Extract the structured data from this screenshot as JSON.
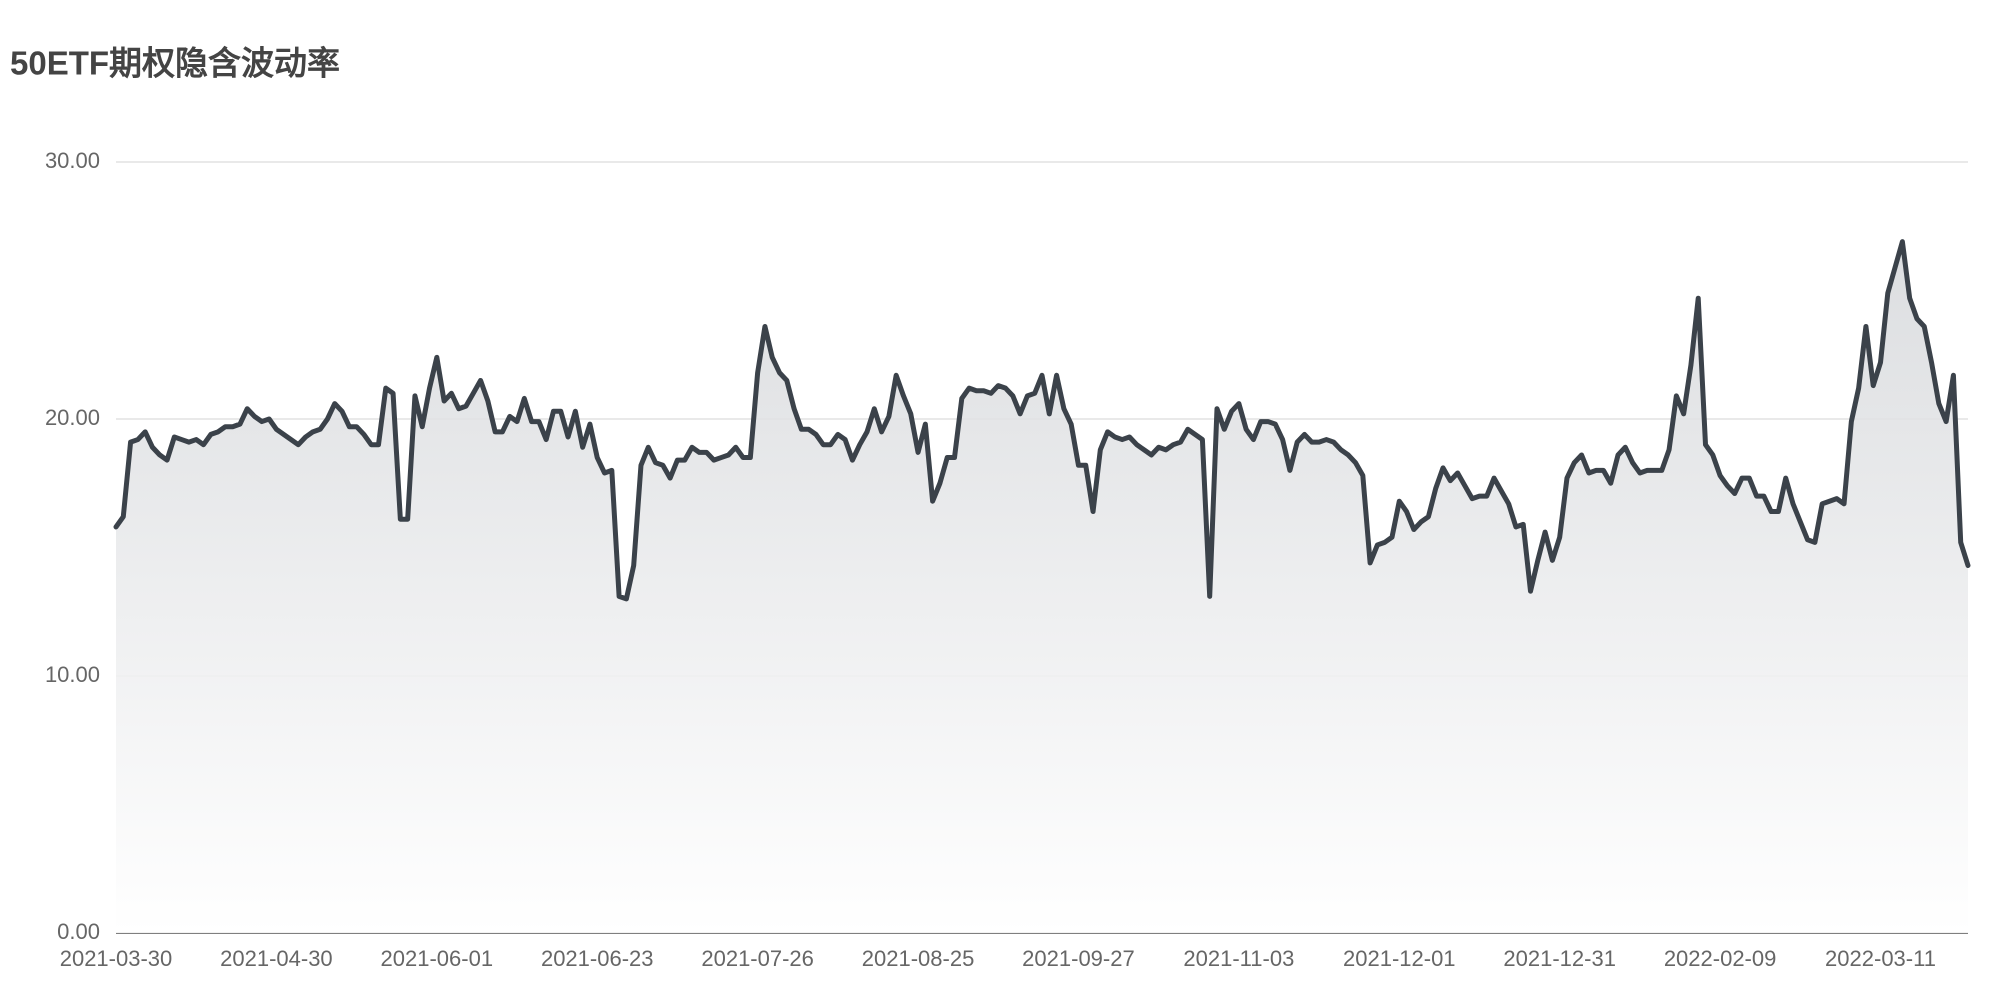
{
  "chart_data": {
    "type": "area",
    "title": "50ETF期权隐含波动率",
    "color": "#3b424a",
    "categories": [
      "2021-03-30",
      null,
      null,
      null,
      null,
      null,
      null,
      null,
      null,
      null,
      null,
      null,
      null,
      null,
      null,
      null,
      null,
      null,
      null,
      null,
      null,
      null,
      "2021-04-30",
      null,
      null,
      null,
      null,
      null,
      null,
      null,
      null,
      null,
      null,
      null,
      null,
      null,
      null,
      null,
      null,
      null,
      null,
      null,
      null,
      null,
      "2021-06-01",
      null,
      null,
      null,
      null,
      null,
      null,
      null,
      null,
      null,
      null,
      null,
      null,
      null,
      null,
      null,
      null,
      null,
      null,
      null,
      null,
      null,
      "2021-06-23",
      null,
      null,
      null,
      null,
      null,
      null,
      null,
      null,
      null,
      null,
      null,
      null,
      null,
      null,
      null,
      null,
      null,
      null,
      null,
      null,
      null,
      "2021-07-26",
      null,
      null,
      null,
      null,
      null,
      null,
      null,
      null,
      null,
      null,
      null,
      null,
      null,
      null,
      null,
      null,
      null,
      null,
      null,
      null,
      null,
      "2021-08-25",
      null,
      null,
      null,
      null,
      null,
      null,
      null,
      null,
      null,
      null,
      null,
      null,
      null,
      null,
      null,
      null,
      null,
      null,
      null,
      null,
      null,
      "2021-09-27",
      null,
      null,
      null,
      null,
      null,
      null,
      null,
      null,
      null,
      null,
      null,
      null,
      null,
      null,
      null,
      null,
      null,
      null,
      null,
      null,
      null,
      "2021-11-03",
      null,
      null,
      null,
      null,
      null,
      null,
      null,
      null,
      null,
      null,
      null,
      null,
      null,
      null,
      null,
      null,
      null,
      null,
      null,
      null,
      null,
      "2021-12-01",
      null,
      null,
      null,
      null,
      null,
      null,
      null,
      null,
      null,
      null,
      null,
      null,
      null,
      null,
      null,
      null,
      null,
      null,
      null,
      null,
      null,
      "2021-12-31",
      null,
      null,
      null,
      null,
      null,
      null,
      null,
      null,
      null,
      null,
      null,
      null,
      null,
      null,
      null,
      null,
      null,
      null,
      null,
      null,
      null,
      "2022-02-09",
      null,
      null,
      null,
      null,
      null,
      null,
      null,
      null,
      null,
      null,
      null,
      null,
      null,
      null,
      null,
      null,
      null,
      null,
      null,
      null,
      null,
      "2022-03-11",
      null,
      null,
      null,
      null,
      null,
      null,
      null,
      null,
      null,
      null,
      null,
      null
    ],
    "values": [
      15.8,
      16.2,
      19.1,
      19.2,
      19.5,
      18.9,
      18.6,
      18.4,
      19.3,
      19.2,
      19.1,
      19.2,
      19.0,
      19.4,
      19.5,
      19.7,
      19.7,
      19.8,
      20.4,
      20.1,
      19.9,
      20.0,
      19.6,
      19.4,
      19.2,
      19.0,
      19.3,
      19.5,
      19.6,
      20.0,
      20.6,
      20.3,
      19.7,
      19.7,
      19.4,
      19.0,
      19.0,
      21.2,
      21.0,
      16.1,
      16.1,
      20.9,
      19.7,
      21.2,
      22.4,
      20.7,
      21.0,
      20.4,
      20.5,
      21.0,
      21.5,
      20.7,
      19.5,
      19.5,
      20.1,
      19.9,
      20.8,
      19.9,
      19.9,
      19.2,
      20.3,
      20.3,
      19.3,
      20.3,
      18.9,
      19.8,
      18.5,
      17.9,
      18.0,
      13.1,
      13.0,
      14.3,
      18.2,
      18.9,
      18.3,
      18.2,
      17.7,
      18.4,
      18.4,
      18.9,
      18.7,
      18.7,
      18.4,
      18.5,
      18.6,
      18.9,
      18.5,
      18.5,
      21.8,
      23.6,
      22.4,
      21.8,
      21.5,
      20.4,
      19.6,
      19.6,
      19.4,
      19.0,
      19.0,
      19.4,
      19.2,
      18.4,
      19.0,
      19.5,
      20.4,
      19.5,
      20.1,
      21.7,
      20.9,
      20.2,
      18.7,
      19.8,
      16.8,
      17.5,
      18.5,
      18.5,
      20.8,
      21.2,
      21.1,
      21.1,
      21.0,
      21.3,
      21.2,
      20.9,
      20.2,
      20.9,
      21.0,
      21.7,
      20.2,
      21.7,
      20.4,
      19.8,
      18.2,
      18.2,
      16.4,
      18.8,
      19.5,
      19.3,
      19.2,
      19.3,
      19.0,
      18.8,
      18.6,
      18.9,
      18.8,
      19.0,
      19.1,
      19.6,
      19.4,
      19.2,
      13.1,
      20.4,
      19.6,
      20.3,
      20.6,
      19.6,
      19.2,
      19.9,
      19.9,
      19.8,
      19.2,
      18.0,
      19.1,
      19.4,
      19.1,
      19.1,
      19.2,
      19.1,
      18.8,
      18.6,
      18.3,
      17.8,
      14.4,
      15.1,
      15.2,
      15.4,
      16.8,
      16.4,
      15.7,
      16.0,
      16.2,
      17.3,
      18.1,
      17.6,
      17.9,
      17.4,
      16.9,
      17.0,
      17.0,
      17.7,
      17.2,
      16.7,
      15.8,
      15.9,
      13.3,
      14.5,
      15.6,
      14.5,
      15.4,
      17.7,
      18.3,
      18.6,
      17.9,
      18.0,
      18.0,
      17.5,
      18.6,
      18.9,
      18.3,
      17.9,
      18.0,
      18.0,
      18.0,
      18.8,
      20.9,
      20.2,
      22.1,
      24.7,
      19.0,
      18.6,
      17.8,
      17.4,
      17.1,
      17.7,
      17.7,
      17.0,
      17.0,
      16.4,
      16.4,
      17.7,
      16.7,
      16.0,
      15.3,
      15.2,
      16.7,
      16.8,
      16.9,
      16.7,
      19.9,
      21.2,
      23.6,
      21.3,
      22.2,
      24.9,
      25.9,
      26.9,
      24.7,
      23.9,
      23.6,
      22.2,
      20.6,
      19.9,
      21.7,
      15.2,
      14.3
    ],
    "ylim": [
      0,
      30
    ],
    "yticks": [
      {
        "value": 0,
        "label": "0.00"
      },
      {
        "value": 10,
        "label": "10.00"
      },
      {
        "value": 20,
        "label": "20.00"
      },
      {
        "value": 30,
        "label": "30.00"
      }
    ],
    "grid": true
  }
}
